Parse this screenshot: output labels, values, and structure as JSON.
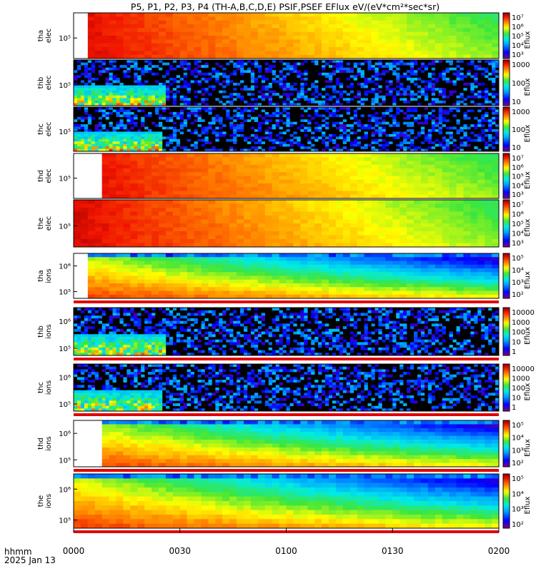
{
  "title": "P5, P1, P2, P3, P4 (TH-A,B,C,D,E) PSIF,PSEF EFlux eV/(eV*cm²*sec*sr)",
  "footer": {
    "time_label": "hhmm",
    "date_label": "2025 Jan 13"
  },
  "chart_data": {
    "type": "heatmap",
    "x_axis": {
      "range": [
        "0000",
        "0200"
      ],
      "ticks": [
        "0000",
        "0030",
        "0100",
        "0130",
        "0200"
      ]
    },
    "panels": [
      {
        "ylabel": [
          "tha",
          "elec"
        ],
        "yticks": [
          "10⁵"
        ],
        "colorbar": {
          "ticks": [
            "10⁷",
            "10⁶",
            "10⁵",
            "10⁴",
            "10³"
          ],
          "label": "Eflux"
        },
        "kind": "elec_hot",
        "data_start": 0.03
      },
      {
        "ylabel": [
          "thb",
          "elec"
        ],
        "yticks": [
          "10⁵"
        ],
        "colorbar": {
          "ticks": [
            "1000",
            "100",
            "10"
          ],
          "label": "Eflux"
        },
        "kind": "elec_sparse",
        "burst_end": 0.22
      },
      {
        "ylabel": [
          "thc",
          "elec"
        ],
        "yticks": [
          "10⁵"
        ],
        "colorbar": {
          "ticks": [
            "1000",
            "100",
            "10"
          ],
          "label": "Eflux"
        },
        "kind": "elec_sparse",
        "burst_end": 0.21
      },
      {
        "ylabel": [
          "thd",
          "elec"
        ],
        "yticks": [
          "10⁵"
        ],
        "colorbar": {
          "ticks": [
            "10⁷",
            "10⁶",
            "10⁵",
            "10⁴",
            "10³"
          ],
          "label": "Eflux"
        },
        "kind": "elec_hot",
        "data_start": 0.07
      },
      {
        "ylabel": [
          "the",
          "elec"
        ],
        "yticks": [
          "10⁵"
        ],
        "colorbar": {
          "ticks": [
            "10⁷",
            "10⁶",
            "10⁵",
            "10⁴",
            "10³"
          ],
          "label": "Eflux"
        },
        "kind": "elec_hot",
        "data_start": 0.0
      },
      {
        "ylabel": [
          "tha",
          "ions"
        ],
        "yticks": [
          "10⁶",
          "10⁵"
        ],
        "colorbar": {
          "ticks": [
            "10⁵",
            "10⁴",
            "10³",
            "10²"
          ],
          "label": "Eflux"
        },
        "kind": "ion_hot",
        "data_start": 0.03
      },
      {
        "ylabel": [
          "thb",
          "ions"
        ],
        "yticks": [
          "10⁶",
          "10⁵"
        ],
        "colorbar": {
          "ticks": [
            "10000",
            "1000",
            "100",
            "10",
            "1"
          ],
          "label": "Eflux"
        },
        "kind": "ion_sparse",
        "burst_end": 0.22
      },
      {
        "ylabel": [
          "thc",
          "ions"
        ],
        "yticks": [
          "10⁶",
          "10⁵"
        ],
        "colorbar": {
          "ticks": [
            "10000",
            "1000",
            "100",
            "10",
            "1"
          ],
          "label": "Eflux"
        },
        "kind": "ion_sparse",
        "burst_end": 0.21
      },
      {
        "ylabel": [
          "thd",
          "ions"
        ],
        "yticks": [
          "10⁶",
          "10⁵"
        ],
        "colorbar": {
          "ticks": [
            "10⁵",
            "10⁴",
            "10³",
            "10²"
          ],
          "label": "Eflux"
        },
        "kind": "ion_hot",
        "data_start": 0.07
      },
      {
        "ylabel": [
          "the",
          "ions"
        ],
        "yticks": [
          "10⁶",
          "10⁵"
        ],
        "colorbar": {
          "ticks": [
            "10⁵",
            "10⁴",
            "10³",
            "10²"
          ],
          "label": "Eflux"
        },
        "kind": "ion_hot",
        "data_start": 0.0
      }
    ]
  }
}
